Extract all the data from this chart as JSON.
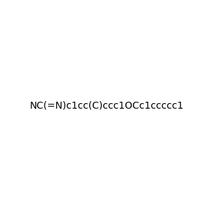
{
  "smiles": "NC(=N)c1cc(C)ccc1OCc1ccccc1",
  "image_size": 300,
  "background_color": "#f0f0f0",
  "title": ""
}
